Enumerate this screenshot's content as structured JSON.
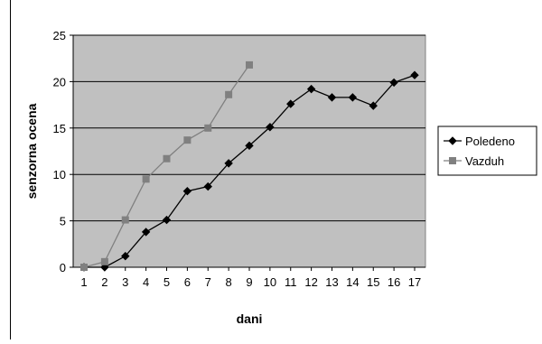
{
  "chart_data": {
    "type": "line",
    "title": "",
    "xlabel": "dani",
    "ylabel": "senzorna ocena",
    "xlim": [
      1,
      17
    ],
    "ylim": [
      0,
      25
    ],
    "y_ticks": [
      0,
      5,
      10,
      15,
      20,
      25
    ],
    "categories": [
      "1",
      "2",
      "3",
      "4",
      "5",
      "6",
      "7",
      "8",
      "9",
      "10",
      "11",
      "12",
      "13",
      "14",
      "15",
      "16",
      "17"
    ],
    "grid": "horizontal",
    "legend_position": "right",
    "plot_background": "#c0c0c0",
    "series": [
      {
        "name": "Poledeno",
        "marker": "diamond",
        "color": "#000000",
        "x": [
          1,
          2,
          3,
          4,
          5,
          6,
          7,
          8,
          9,
          10,
          11,
          12,
          13,
          14,
          15,
          16,
          17
        ],
        "values": [
          0,
          0,
          1.2,
          3.8,
          5.1,
          8.2,
          8.7,
          11.2,
          13.1,
          15.1,
          17.6,
          19.2,
          18.3,
          18.3,
          17.4,
          19.9,
          20.7
        ]
      },
      {
        "name": "Vazduh",
        "marker": "square",
        "color": "#808080",
        "x": [
          1,
          2,
          3,
          4,
          5,
          6,
          7,
          8,
          9
        ],
        "values": [
          0,
          0.6,
          5.1,
          9.5,
          11.7,
          13.7,
          15.0,
          18.6,
          21.8
        ]
      }
    ]
  }
}
